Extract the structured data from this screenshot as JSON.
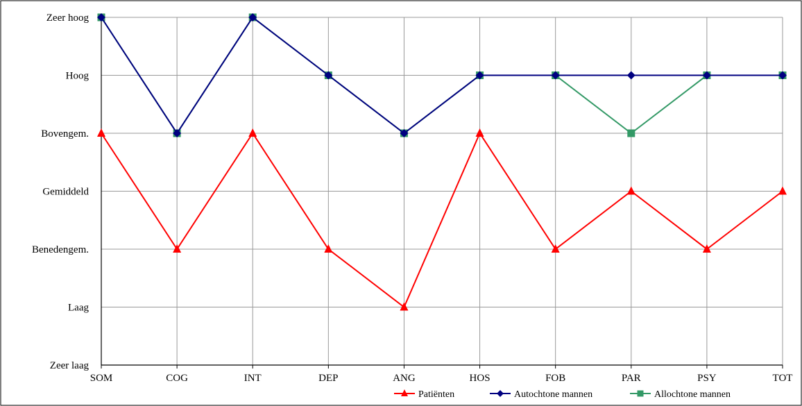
{
  "chart_data": {
    "type": "line",
    "categories": [
      "SOM",
      "COG",
      "INT",
      "DEP",
      "ANG",
      "HOS",
      "FOB",
      "PAR",
      "PSY",
      "TOT"
    ],
    "y_levels": [
      "Zeer laag",
      "Laag",
      "Benedengem.",
      "Gemiddeld",
      "Bovengem.",
      "Hoog",
      "Zeer hoog"
    ],
    "ylim": [
      0,
      6
    ],
    "grid": true,
    "legend_position": "bottom-right",
    "series": [
      {
        "name": "Patiënten",
        "values": [
          4,
          2,
          4,
          2,
          1,
          4,
          2,
          3,
          2,
          3
        ],
        "color": "#ff0000",
        "marker": "triangle"
      },
      {
        "name": "Allochtone mannen",
        "values": [
          6,
          4,
          6,
          5,
          4,
          5,
          5,
          4,
          5,
          5
        ],
        "color": "#339966",
        "marker": "square"
      },
      {
        "name": "Autochtone mannen",
        "values": [
          6,
          4,
          6,
          5,
          4,
          5,
          5,
          5,
          5,
          5
        ],
        "color": "#000080",
        "marker": "diamond"
      }
    ],
    "legend_order": [
      "Patiënten",
      "Autochtone mannen",
      "Allochtone mannen"
    ]
  }
}
